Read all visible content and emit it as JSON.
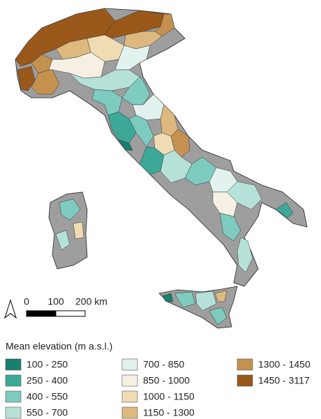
{
  "legend": {
    "title": "Mean elevation (m a.s.l.)",
    "items": [
      {
        "label": "100 - 250",
        "color": "#17806f"
      },
      {
        "label": "250 - 400",
        "color": "#3da898"
      },
      {
        "label": "400 - 550",
        "color": "#7ecbbf"
      },
      {
        "label": "550 - 700",
        "color": "#b6e1d9"
      },
      {
        "label": "700 - 850",
        "color": "#e2f2ee"
      },
      {
        "label": "850 - 1000",
        "color": "#f6f0e4"
      },
      {
        "label": "1000 - 1150",
        "color": "#efdcb3"
      },
      {
        "label": "1150 - 1300",
        "color": "#ddb97f"
      },
      {
        "label": "1300 - 1450",
        "color": "#c4914f"
      },
      {
        "label": "1450 - 3117",
        "color": "#9a581a"
      }
    ]
  },
  "scale_bar": {
    "labels": [
      "0",
      "100",
      "200 km"
    ]
  }
}
